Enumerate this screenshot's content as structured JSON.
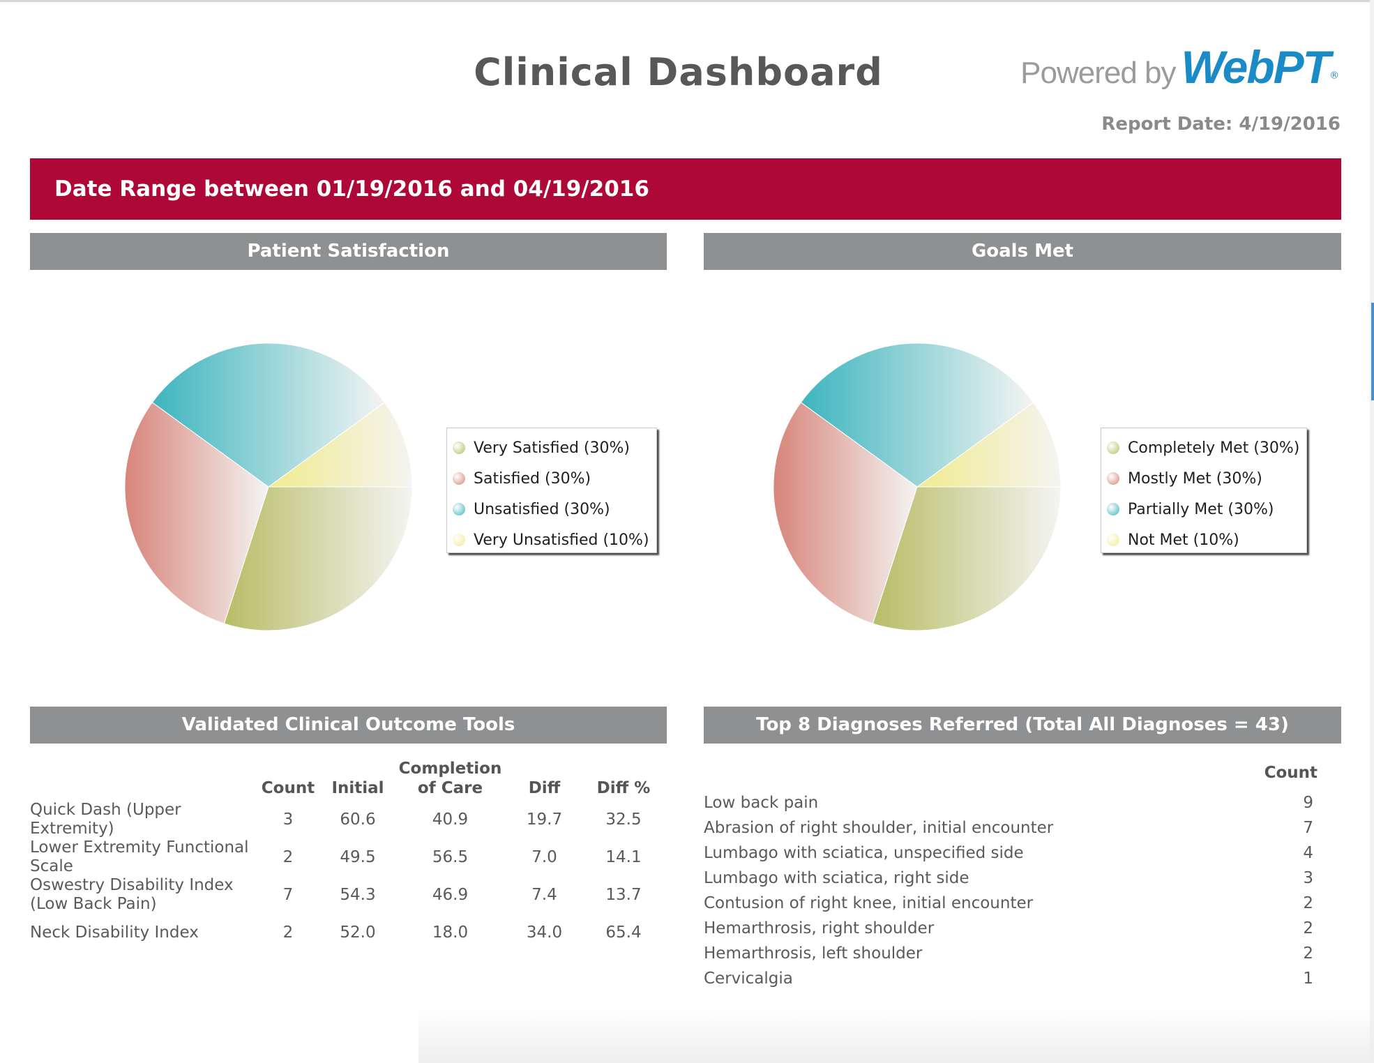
{
  "header": {
    "title": "Clinical Dashboard",
    "logo_powered": "Powered by",
    "logo_brand": "WebPT",
    "logo_mark": "®",
    "report_date": "Report Date: 4/19/2016"
  },
  "banner": {
    "text": "Date Range between 01/19/2016 and 04/19/2016"
  },
  "sections": {
    "satisfaction": "Patient Satisfaction",
    "goals": "Goals Met",
    "outcomes": "Validated Clinical Outcome Tools",
    "diagnoses": "Top 8 Diagnoses Referred (Total All Diagnoses = 43)"
  },
  "colors": {
    "banner": "#ad0836",
    "section_header": "#8f9091",
    "slice_green": "#b7bd66",
    "slice_red": "#d7857a",
    "slice_blue": "#3db5bf",
    "slice_yellow": "#f1eb8f"
  },
  "chart_data": [
    {
      "type": "pie",
      "title": "Patient Satisfaction",
      "categories": [
        "Very Satisfied (30%)",
        "Satisfied (30%)",
        "Unsatisfied (30%)",
        "Very Unsatisfied (10%)"
      ],
      "values": [
        30,
        30,
        30,
        10
      ],
      "colors": [
        "#b7bd66",
        "#d7857a",
        "#3db5bf",
        "#f1eb8f"
      ],
      "legend": "right"
    },
    {
      "type": "pie",
      "title": "Goals Met",
      "categories": [
        "Completely Met (30%)",
        "Mostly Met (30%)",
        "Partially Met (30%)",
        "Not Met (10%)"
      ],
      "values": [
        30,
        30,
        30,
        10
      ],
      "colors": [
        "#b7bd66",
        "#d7857a",
        "#3db5bf",
        "#f1eb8f"
      ],
      "legend": "right"
    }
  ],
  "outcomes_table": {
    "headers": {
      "count": "Count",
      "initial": "Initial",
      "completion_1": "Completion",
      "completion_2": "of Care",
      "diff": "Diff",
      "diff_pct": "Diff %"
    },
    "rows": [
      {
        "tool_1": "Quick Dash (Upper",
        "tool_2": "Extremity)",
        "count": "3",
        "initial": "60.6",
        "completion": "40.9",
        "diff": "19.7",
        "diff_pct": "32.5"
      },
      {
        "tool_1": "Lower Extremity Functional",
        "tool_2": "Scale",
        "count": "2",
        "initial": "49.5",
        "completion": "56.5",
        "diff": "7.0",
        "diff_pct": "14.1"
      },
      {
        "tool_1": "Oswestry Disability Index",
        "tool_2": "(Low Back Pain)",
        "count": "7",
        "initial": "54.3",
        "completion": "46.9",
        "diff": "7.4",
        "diff_pct": "13.7"
      },
      {
        "tool_1": "Neck Disability Index",
        "tool_2": "",
        "count": "2",
        "initial": "52.0",
        "completion": "18.0",
        "diff": "34.0",
        "diff_pct": "65.4"
      }
    ]
  },
  "diagnoses_table": {
    "count_header": "Count",
    "rows": [
      {
        "name": "Low back pain",
        "count": "9"
      },
      {
        "name": "Abrasion of right shoulder, initial encounter",
        "count": "7"
      },
      {
        "name": "Lumbago with sciatica, unspecified side",
        "count": "4"
      },
      {
        "name": "Lumbago with sciatica, right side",
        "count": "3"
      },
      {
        "name": "Contusion of right knee, initial encounter",
        "count": "2"
      },
      {
        "name": "Hemarthrosis, right shoulder",
        "count": "2"
      },
      {
        "name": "Hemarthrosis, left shoulder",
        "count": "2"
      },
      {
        "name": "Cervicalgia",
        "count": "1"
      }
    ]
  }
}
